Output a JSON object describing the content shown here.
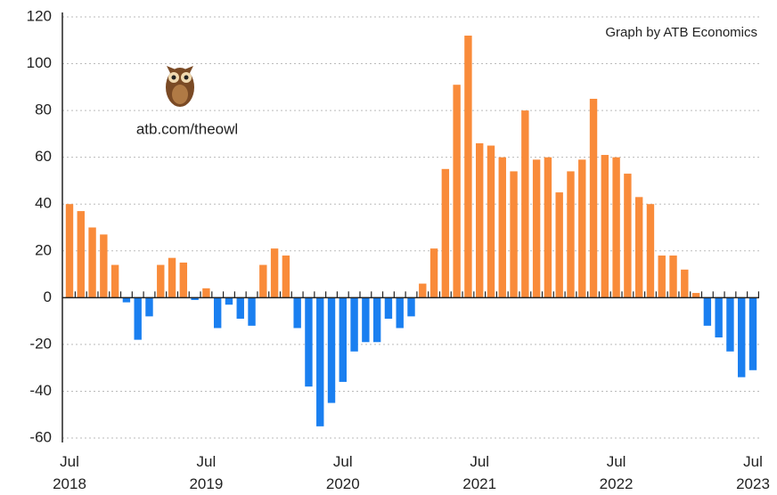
{
  "chart_data": {
    "type": "bar",
    "annotations": [
      "Graph by ATB Economics",
      "atb.com/theowl"
    ],
    "categories": [
      "Jul\n2018",
      null,
      null,
      null,
      null,
      null,
      null,
      null,
      null,
      null,
      null,
      null,
      "Jul\n2019",
      null,
      null,
      null,
      null,
      null,
      null,
      null,
      null,
      null,
      null,
      null,
      "Jul\n2020",
      null,
      null,
      null,
      null,
      null,
      null,
      null,
      null,
      null,
      null,
      null,
      "Jul\n2021",
      null,
      null,
      null,
      null,
      null,
      null,
      null,
      null,
      null,
      null,
      null,
      "Jul\n2022",
      null,
      null,
      null,
      null,
      null,
      null,
      null,
      null,
      null,
      null,
      null,
      "Jul\n2023"
    ],
    "values": [
      40,
      37,
      30,
      27,
      14,
      -2,
      -18,
      -8,
      14,
      17,
      15,
      -1,
      4,
      -13,
      -3,
      -9,
      -12,
      14,
      21,
      18,
      -13,
      -38,
      -55,
      -45,
      -36,
      -23,
      -19,
      -19,
      -9,
      -13,
      -8,
      6,
      21,
      55,
      91,
      112,
      66,
      65,
      60,
      54,
      80,
      59,
      60,
      45,
      54,
      59,
      85,
      61,
      60,
      53,
      43,
      40,
      18,
      18,
      12,
      2,
      -12,
      -17,
      -23,
      -34,
      -31
    ],
    "positive_color": "#f98b3a",
    "negative_color": "#1a7ff0",
    "ylim": [
      -60,
      120
    ],
    "yticks": [
      -60,
      -40,
      -20,
      0,
      20,
      40,
      60,
      80,
      100,
      120
    ],
    "grid": true
  }
}
